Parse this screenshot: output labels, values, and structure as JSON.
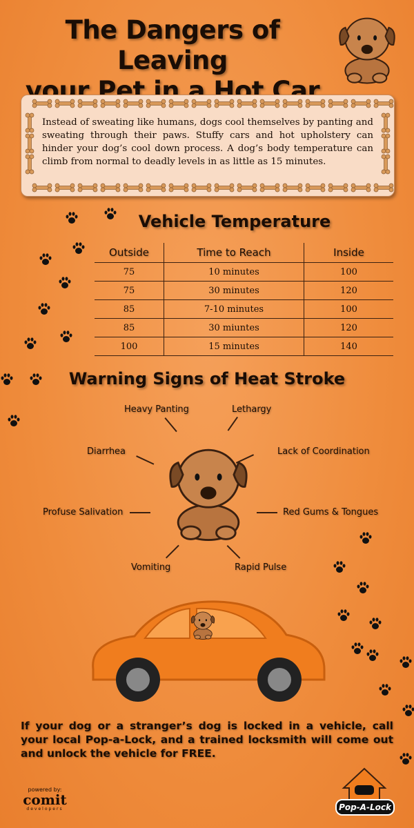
{
  "header": {
    "title_line1": "The Dangers of Leaving",
    "title_line2": "your Pet in a Hot Car"
  },
  "intro": {
    "text": "Instead of sweating like humans, dogs cool themselves by panting and sweating through their paws. Stuffy cars and hot upholstery can hinder your dog’s cool down process. A dog’s body temperature can climb from normal to deadly levels in as little as 15 minutes."
  },
  "vehicle_temperature": {
    "title": "Vehicle Temperature",
    "columns": [
      "Outside",
      "Time to Reach",
      "Inside"
    ],
    "rows": [
      [
        "75",
        "10 minutes",
        "100"
      ],
      [
        "75",
        "30 minutes",
        "120"
      ],
      [
        "85",
        "7-10 minutes",
        "100"
      ],
      [
        "85",
        "30 miuntes",
        "120"
      ],
      [
        "100",
        "15 minutes",
        "140"
      ]
    ]
  },
  "warning_signs": {
    "title": "Warning Signs of Heat Stroke",
    "signs": [
      "Heavy Panting",
      "Lethargy",
      "Diarrhea",
      "Lack of Coordination",
      "Profuse Salivation",
      "Red Gums & Tongues",
      "Vomiting",
      "Rapid Pulse"
    ]
  },
  "cta": {
    "text": "If your dog or a stranger’s dog is locked in a vehicle, call your local Pop-a-Lock, and a trained locksmith will come out and unlock the vehicle for FREE."
  },
  "footer": {
    "powered_by": "powered by:",
    "comit_logo": "comit",
    "comit_sub": "developers",
    "popalock_logo": "Pop-A-Lock"
  },
  "colors": {
    "background": "#ef8c3c",
    "car": "#f07d1e",
    "dog": "#b8743f",
    "panel": "#f9dcc6"
  }
}
